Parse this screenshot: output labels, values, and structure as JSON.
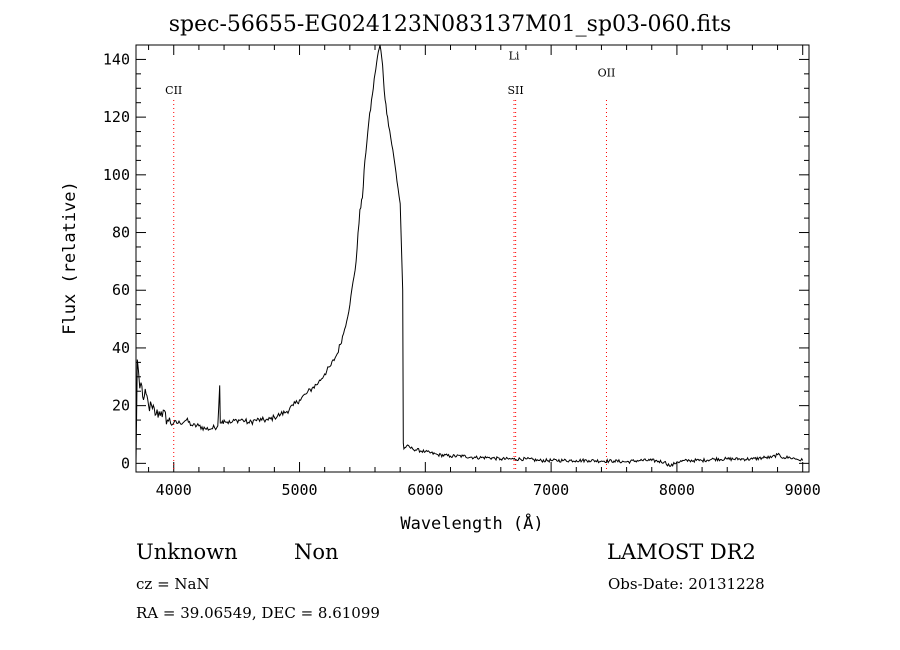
{
  "title": "spec-56655-EG024123N083137M01_sp03-060.fits",
  "info": {
    "class": "Unknown",
    "subclass": "Non",
    "survey": "LAMOST DR2",
    "cz_label": "cz = ",
    "cz_value": "NaN",
    "obsdate_label": "Obs-Date: ",
    "obsdate_value": "20131228",
    "ra_label": "RA = ",
    "ra_value": "39.06549",
    "dec_label": ", DEC = ",
    "dec_value": "8.61099"
  },
  "colors": {
    "line": "#000000",
    "marker": "#ff0000",
    "background": "#ffffff"
  },
  "chart_data": {
    "type": "line",
    "title": "spec-56655-EG024123N083137M01_sp03-060.fits",
    "xlabel": "Wavelength (Å)",
    "ylabel": "Flux (relative)",
    "xlim": [
      3700,
      9050
    ],
    "ylim": [
      -3,
      145
    ],
    "xticks": [
      4000,
      5000,
      6000,
      7000,
      8000,
      9000
    ],
    "yticks": [
      0,
      20,
      40,
      60,
      80,
      100,
      120,
      140
    ],
    "grid": false,
    "legend": "none",
    "line_markers": [
      {
        "label": "CII",
        "x": 4000,
        "label_y": 128
      },
      {
        "label": "Li",
        "x": 6705,
        "label_y": 140
      },
      {
        "label": "SII",
        "x": 6718,
        "label_y": 128
      },
      {
        "label": "OII",
        "x": 7440,
        "label_y": 134
      }
    ],
    "series": [
      {
        "x": [
          3700,
          3710,
          3720,
          3730,
          3740,
          3760,
          3780,
          3800,
          3830,
          3860,
          3900,
          3950,
          4000,
          4050,
          4100,
          4150,
          4200,
          4250,
          4300,
          4350,
          4365,
          4370,
          4380,
          4400,
          4450,
          4500,
          4550,
          4600,
          4650,
          4700,
          4750,
          4800,
          4850,
          4900,
          4950,
          5000,
          5050,
          5100,
          5150,
          5200,
          5250,
          5300,
          5350,
          5400,
          5450,
          5480,
          5500,
          5520,
          5550,
          5580,
          5600,
          5620,
          5640,
          5660,
          5680,
          5700,
          5750,
          5800,
          5820,
          5825,
          5830,
          5850,
          5900,
          6000,
          6100,
          6200,
          6300,
          6400,
          6500,
          6600,
          6700,
          6800,
          6900,
          7000,
          7100,
          7200,
          7300,
          7400,
          7500,
          7600,
          7700,
          7800,
          7900,
          7950,
          8000,
          8100,
          8200,
          8300,
          8400,
          8500,
          8600,
          8700,
          8750,
          8800,
          8850,
          8900,
          8950,
          9000
        ],
        "y": [
          0,
          36,
          32,
          26,
          28,
          22,
          24,
          20,
          19,
          17,
          18,
          15,
          14,
          14,
          15,
          13,
          13,
          12,
          12,
          13,
          27,
          14,
          14,
          15,
          14,
          15,
          15,
          14,
          15,
          15,
          15,
          16,
          17,
          18,
          20,
          22,
          24,
          26,
          28,
          31,
          34,
          38,
          45,
          55,
          70,
          88,
          92,
          105,
          118,
          128,
          135,
          141,
          145,
          138,
          126,
          120,
          106,
          90,
          60,
          7,
          5,
          6,
          5,
          4,
          3,
          2.5,
          2.5,
          2,
          2,
          1.5,
          1.5,
          1.5,
          1,
          1,
          1,
          1,
          1,
          0.8,
          0.8,
          0.5,
          1,
          1,
          0.5,
          -1,
          0.5,
          1,
          1,
          1.5,
          1.5,
          1.5,
          1.5,
          2,
          2,
          3,
          2,
          2,
          1.5,
          1
        ]
      }
    ]
  }
}
